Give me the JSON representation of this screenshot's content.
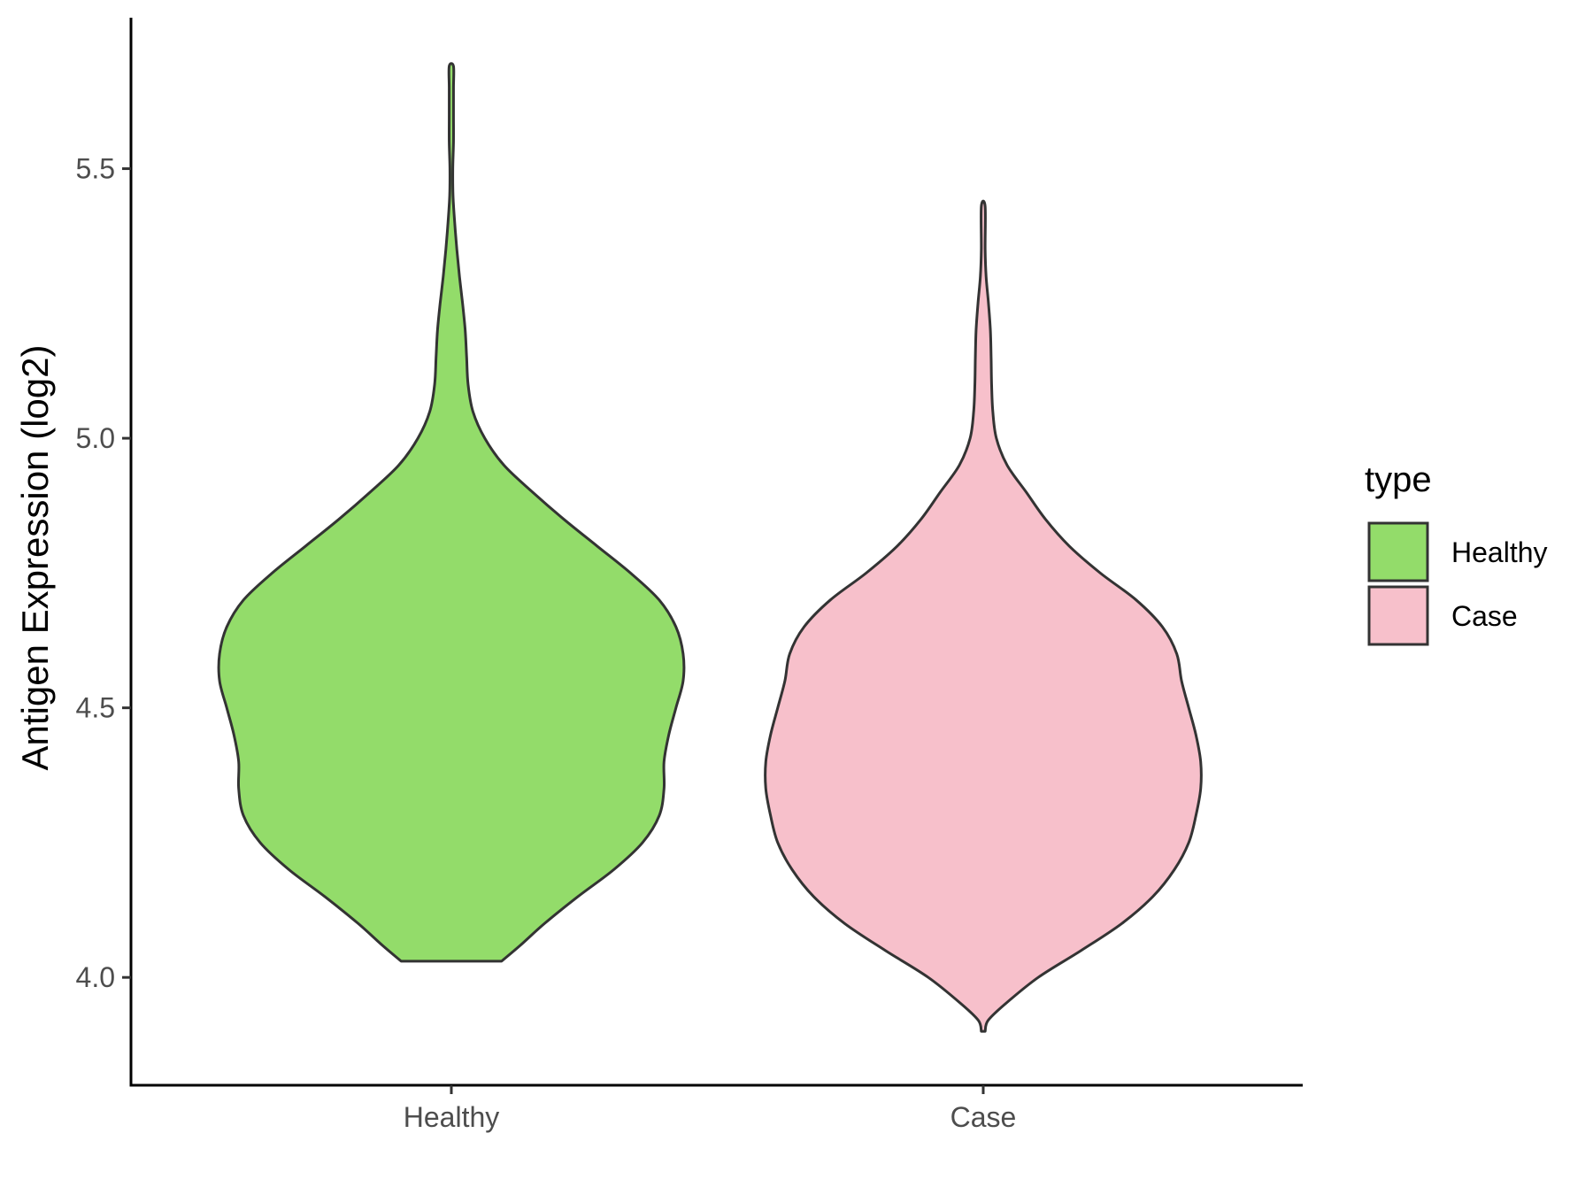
{
  "chart_data": {
    "type": "violin",
    "categories": [
      "Healthy",
      "Case"
    ],
    "ylabel": "Antigen Expression (log2)",
    "xlabel": "",
    "ylim": [
      3.8,
      5.78
    ],
    "yticks": [
      "4.0",
      "4.5",
      "5.0",
      "5.5"
    ],
    "grid": false,
    "legend": {
      "title": "type",
      "position": "right",
      "items": [
        {
          "label": "Healthy",
          "color": "#93dc6a"
        },
        {
          "label": "Case",
          "color": "#f7c0cb"
        }
      ]
    },
    "series": [
      {
        "name": "Healthy",
        "color": "#93dc6a",
        "min": 4.03,
        "max": 5.69,
        "density_profile": [
          [
            4.03,
            0.21
          ],
          [
            4.06,
            0.29
          ],
          [
            4.1,
            0.39
          ],
          [
            4.15,
            0.53
          ],
          [
            4.2,
            0.68
          ],
          [
            4.25,
            0.8
          ],
          [
            4.3,
            0.87
          ],
          [
            4.35,
            0.89
          ],
          [
            4.4,
            0.89
          ],
          [
            4.45,
            0.91
          ],
          [
            4.5,
            0.94
          ],
          [
            4.55,
            0.97
          ],
          [
            4.6,
            0.97
          ],
          [
            4.65,
            0.94
          ],
          [
            4.7,
            0.87
          ],
          [
            4.75,
            0.75
          ],
          [
            4.8,
            0.61
          ],
          [
            4.85,
            0.47
          ],
          [
            4.9,
            0.34
          ],
          [
            4.95,
            0.22
          ],
          [
            5.0,
            0.14
          ],
          [
            5.05,
            0.09
          ],
          [
            5.1,
            0.07
          ],
          [
            5.15,
            0.064
          ],
          [
            5.2,
            0.058
          ],
          [
            5.25,
            0.047
          ],
          [
            5.3,
            0.034
          ],
          [
            5.35,
            0.023
          ],
          [
            5.4,
            0.014
          ],
          [
            5.45,
            0.007
          ],
          [
            5.5,
            0.006
          ],
          [
            5.55,
            0.009
          ],
          [
            5.6,
            0.009
          ],
          [
            5.65,
            0.009
          ],
          [
            5.69,
            0.009
          ]
        ]
      },
      {
        "name": "Case",
        "color": "#f7c0cb",
        "min": 3.9,
        "max": 5.43,
        "density_profile": [
          [
            3.9,
            0.008
          ],
          [
            3.92,
            0.02
          ],
          [
            3.95,
            0.09
          ],
          [
            4.0,
            0.23
          ],
          [
            4.05,
            0.41
          ],
          [
            4.1,
            0.58
          ],
          [
            4.15,
            0.71
          ],
          [
            4.2,
            0.8
          ],
          [
            4.25,
            0.86
          ],
          [
            4.3,
            0.89
          ],
          [
            4.35,
            0.91
          ],
          [
            4.4,
            0.91
          ],
          [
            4.45,
            0.89
          ],
          [
            4.5,
            0.86
          ],
          [
            4.55,
            0.83
          ],
          [
            4.6,
            0.81
          ],
          [
            4.65,
            0.75
          ],
          [
            4.7,
            0.64
          ],
          [
            4.75,
            0.49
          ],
          [
            4.8,
            0.36
          ],
          [
            4.85,
            0.26
          ],
          [
            4.9,
            0.18
          ],
          [
            4.95,
            0.1
          ],
          [
            5.0,
            0.055
          ],
          [
            5.05,
            0.04
          ],
          [
            5.1,
            0.035
          ],
          [
            5.15,
            0.033
          ],
          [
            5.2,
            0.03
          ],
          [
            5.25,
            0.022
          ],
          [
            5.3,
            0.012
          ],
          [
            5.35,
            0.008
          ],
          [
            5.43,
            0.008
          ]
        ]
      }
    ]
  }
}
